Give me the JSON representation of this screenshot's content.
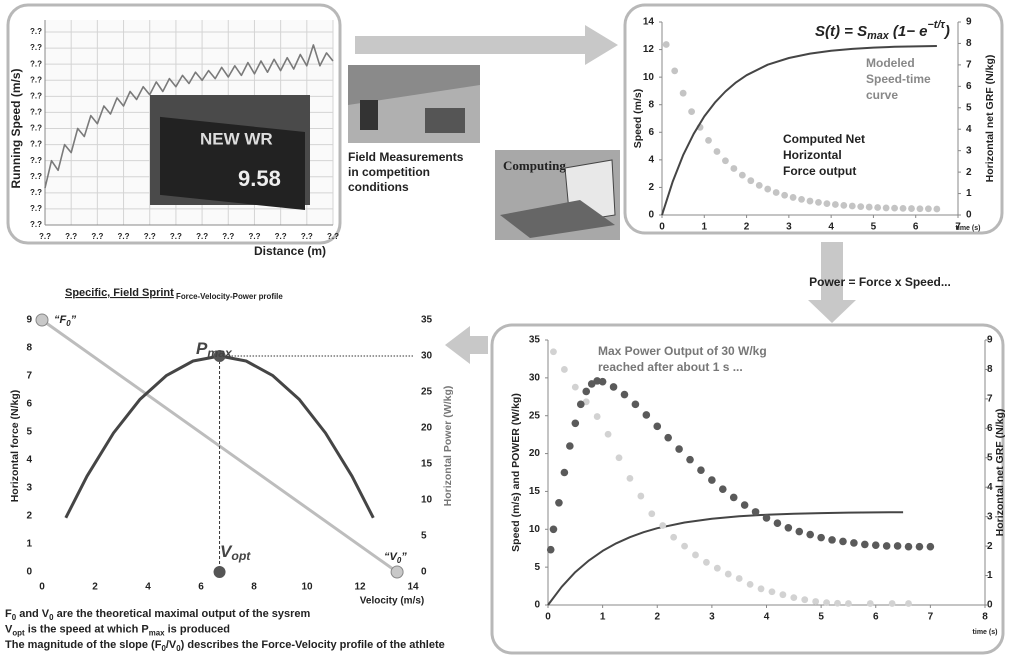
{
  "chart_data": [
    {
      "type": "line",
      "ylabel": "Running Speed (m/s)",
      "xlabel": "Distance (m)",
      "xlim": [
        0,
        11
      ],
      "ylim": [
        0,
        12
      ],
      "grid": true,
      "xticks": [
        {
          "value": 0,
          "label": "?.?"
        },
        {
          "value": 1,
          "label": "?.?"
        },
        {
          "value": 2,
          "label": "?.?"
        },
        {
          "value": 3,
          "label": "?.?"
        },
        {
          "value": 4,
          "label": "?.?"
        },
        {
          "value": 5,
          "label": "?.?"
        },
        {
          "value": 6,
          "label": "?.?"
        },
        {
          "value": 7,
          "label": "?.?"
        },
        {
          "value": 8,
          "label": "?.?"
        },
        {
          "value": 9,
          "label": "?.?"
        },
        {
          "value": 10,
          "label": "?.?"
        },
        {
          "value": 11,
          "label": "?.?"
        }
      ],
      "yticks": [
        {
          "value": 0,
          "label": "?.?"
        },
        {
          "value": 1,
          "label": "?.?"
        },
        {
          "value": 2,
          "label": "?.?"
        },
        {
          "value": 3,
          "label": "?.?"
        },
        {
          "value": 4,
          "label": "?.?"
        },
        {
          "value": 5,
          "label": "?.?"
        },
        {
          "value": 6,
          "label": "?.?"
        },
        {
          "value": 7,
          "label": "?.?"
        },
        {
          "value": 8,
          "label": "?.?"
        },
        {
          "value": 9,
          "label": "?.?"
        },
        {
          "value": 10,
          "label": "?.?"
        },
        {
          "value": 11,
          "label": "?.?"
        },
        {
          "value": 12,
          "label": "?.?"
        }
      ],
      "series": [
        {
          "color": "#7a7a7a",
          "style": "line",
          "x": [
            0,
            0.25,
            0.5,
            0.75,
            1,
            1.25,
            1.5,
            1.75,
            2,
            2.25,
            2.5,
            2.75,
            3,
            3.25,
            3.5,
            3.75,
            4,
            4.25,
            4.5,
            4.75,
            5,
            5.25,
            5.5,
            5.75,
            6,
            6.25,
            6.5,
            6.75,
            7,
            7.25,
            7.5,
            7.75,
            8,
            8.25,
            8.5,
            8.75,
            9,
            9.25,
            9.5,
            9.75,
            10,
            10.25,
            10.5,
            10.75,
            11
          ],
          "values": [
            2.3,
            4,
            3.4,
            5,
            4.5,
            6,
            5.5,
            6.8,
            6.3,
            7.4,
            6.9,
            7.9,
            7.4,
            8.3,
            7.8,
            8.6,
            8.1,
            8.9,
            8.3,
            9.1,
            8.6,
            9.3,
            8.8,
            9.5,
            9,
            9.6,
            9.1,
            9.8,
            9.2,
            9.9,
            9.3,
            10.1,
            9.4,
            10.2,
            9.5,
            10.3,
            9.6,
            10.4,
            9.7,
            10.6,
            9.9,
            11.2,
            9.9,
            10.7,
            10.2
          ]
        }
      ]
    },
    {
      "type": "line",
      "ylabel": "Speed (m/s)",
      "y2label": "Horizontal net GRF (N/kg)",
      "xlabel": "time (s)",
      "xlim": [
        0,
        7
      ],
      "xticks": [
        0,
        1,
        2,
        3,
        4,
        5,
        6,
        7
      ],
      "ylim": [
        0,
        14
      ],
      "yticks": [
        0,
        2,
        4,
        6,
        8,
        10,
        12,
        14
      ],
      "y2lim": [
        0,
        9
      ],
      "y2ticks": [
        0,
        1,
        2,
        3,
        4,
        5,
        6,
        7,
        8,
        9
      ],
      "formula": [
        "S(t) = S",
        "max",
        " (1− e",
        "−t/τ",
        ")"
      ],
      "annotations": [
        [
          "Modeled",
          "Speed-time",
          "curve"
        ],
        [
          "Computed Net",
          "Horizontal",
          "Force output"
        ]
      ],
      "series": [
        {
          "color": "#c4c4c4",
          "style": "dots",
          "axis": "y2",
          "x": [
            0.1,
            0.3,
            0.5,
            0.7,
            0.9,
            1.1,
            1.3,
            1.5,
            1.7,
            1.9,
            2.1,
            2.3,
            2.5,
            2.7,
            2.9,
            3.1,
            3.3,
            3.5,
            3.7,
            3.9,
            4.1,
            4.3,
            4.5,
            4.7,
            4.9,
            5.1,
            5.3,
            5.5,
            5.7,
            5.9,
            6.1,
            6.3,
            6.5
          ],
          "values": [
            7.95,
            6.72,
            5.68,
            4.82,
            4.09,
            3.48,
            2.96,
            2.53,
            2.17,
            1.86,
            1.6,
            1.38,
            1.21,
            1.05,
            0.92,
            0.82,
            0.73,
            0.65,
            0.59,
            0.53,
            0.49,
            0.45,
            0.42,
            0.39,
            0.37,
            0.35,
            0.33,
            0.32,
            0.31,
            0.3,
            0.29,
            0.29,
            0.28
          ]
        },
        {
          "color": "#454545",
          "style": "line",
          "x": [
            0,
            0.25,
            0.5,
            0.75,
            1,
            1.25,
            1.5,
            1.75,
            2,
            2.5,
            3,
            3.5,
            4,
            4.5,
            5,
            5.5,
            6,
            6.5
          ],
          "values": [
            0,
            2.4,
            4.34,
            5.89,
            7.15,
            8.15,
            8.96,
            9.62,
            10.14,
            10.9,
            11.39,
            11.71,
            11.92,
            12.05,
            12.14,
            12.2,
            12.23,
            12.26
          ]
        }
      ]
    },
    {
      "type": "line",
      "ylabel": "Speed (m/s) and POWER (W/kg)",
      "y2label": "Horizontal net GRF (N/kg)",
      "xlabel": "time (s)",
      "xlim": [
        0,
        8
      ],
      "xticks": [
        0,
        1,
        2,
        3,
        4,
        5,
        6,
        7,
        8
      ],
      "ylim": [
        0,
        35
      ],
      "yticks": [
        0,
        5,
        10,
        15,
        20,
        25,
        30,
        35
      ],
      "y2lim": [
        0,
        9
      ],
      "y2ticks": [
        0,
        1,
        2,
        3,
        4,
        5,
        6,
        7,
        8,
        9
      ],
      "annotations": [
        [
          "Max Power Output of 30 W/kg",
          "reached after about 1 s ..."
        ]
      ],
      "series": [
        {
          "color": "#454545",
          "style": "line",
          "x": [
            0,
            0.25,
            0.5,
            0.75,
            1,
            1.25,
            1.5,
            1.75,
            2,
            2.5,
            3,
            3.5,
            4,
            4.5,
            5,
            5.5,
            6,
            6.5
          ],
          "values": [
            0,
            2.4,
            4.34,
            5.89,
            7.15,
            8.15,
            8.96,
            9.62,
            10.14,
            10.9,
            11.39,
            11.71,
            11.92,
            12.05,
            12.14,
            12.2,
            12.23,
            12.26
          ]
        },
        {
          "color": "#d2d2d2",
          "style": "dots",
          "axis": "y2",
          "x": [
            0.1,
            0.3,
            0.5,
            0.7,
            0.9,
            1.1,
            1.3,
            1.5,
            1.7,
            1.9,
            2.1,
            2.3,
            2.5,
            2.7,
            2.9,
            3.1,
            3.3,
            3.5,
            3.7,
            3.9,
            4.1,
            4.3,
            4.5,
            4.7,
            4.9,
            5.1,
            5.3,
            5.5,
            5.9,
            6.3,
            6.6
          ],
          "values": [
            8.6,
            8,
            7.4,
            6.9,
            6.4,
            5.8,
            5,
            4.3,
            3.7,
            3.1,
            2.7,
            2.3,
            2,
            1.7,
            1.45,
            1.25,
            1.05,
            0.9,
            0.7,
            0.55,
            0.45,
            0.35,
            0.25,
            0.18,
            0.12,
            0.08,
            0.06,
            0.05,
            0.05,
            0.05,
            0.05
          ]
        },
        {
          "color": "#5a5a5a",
          "style": "dots",
          "x": [
            0.05,
            0.1,
            0.2,
            0.3,
            0.4,
            0.5,
            0.6,
            0.7,
            0.8,
            0.9,
            1,
            1.2,
            1.4,
            1.6,
            1.8,
            2,
            2.2,
            2.4,
            2.6,
            2.8,
            3,
            3.2,
            3.4,
            3.6,
            3.8,
            4,
            4.2,
            4.4,
            4.6,
            4.8,
            5,
            5.2,
            5.4,
            5.6,
            5.8,
            6,
            6.2,
            6.4,
            6.6,
            6.8,
            7
          ],
          "values": [
            7.3,
            10,
            13.5,
            17.5,
            21,
            24,
            26.5,
            28.2,
            29.2,
            29.6,
            29.5,
            28.8,
            27.8,
            26.5,
            25.1,
            23.6,
            22.1,
            20.6,
            19.2,
            17.8,
            16.5,
            15.3,
            14.2,
            13.2,
            12.3,
            11.5,
            10.8,
            10.2,
            9.7,
            9.3,
            8.9,
            8.6,
            8.4,
            8.2,
            8,
            7.9,
            7.8,
            7.8,
            7.7,
            7.7,
            7.7
          ]
        }
      ]
    },
    {
      "type": "line",
      "title": [
        "Specific, Field Sprint",
        " Force-Velocity-Power profile"
      ],
      "ylabel": "Horizontal force (N/kg)",
      "y2label": "Horizontal Power (W/kg)",
      "xlabel": "Velocity (m/s)",
      "xlim": [
        0,
        14
      ],
      "xticks": [
        0,
        2,
        4,
        6,
        8,
        10,
        12,
        14
      ],
      "ylim": [
        0,
        9
      ],
      "yticks": [
        0,
        1,
        2,
        3,
        4,
        5,
        6,
        7,
        8,
        9
      ],
      "y2lim": [
        0,
        35
      ],
      "y2ticks": [
        0,
        5,
        10,
        15,
        20,
        25,
        30,
        35
      ],
      "point_labels": [
        [
          "“F",
          "0",
          "”"
        ],
        [
          "“V",
          "0",
          "”"
        ],
        [
          "P",
          "max"
        ],
        [
          "V",
          "opt"
        ]
      ],
      "series": [
        {
          "color": "#bdbdbd",
          "style": "line",
          "x": [
            0,
            13.4
          ],
          "values": [
            9,
            0
          ]
        },
        {
          "color": "#454545",
          "style": "line",
          "axis": "y2",
          "x": [
            0.9,
            1.7,
            2.7,
            3.7,
            4.7,
            5.7,
            6.7,
            7.7,
            8.7,
            9.7,
            10.7,
            11.7,
            12.5
          ],
          "values": [
            7.53,
            13.3,
            19.3,
            24,
            27.3,
            29.3,
            30,
            29.3,
            27.3,
            24,
            19.3,
            13.3,
            7.53
          ]
        }
      ]
    }
  ],
  "scoreboard": [
    "NEW WR",
    "9.58"
  ],
  "field_caption": [
    "Field Measurements",
    "in competition",
    "conditions"
  ],
  "computing_label": "Computing",
  "power_equation": "Power = Force x Speed...",
  "footnotes": [
    [
      "F",
      "0",
      " and V",
      "0",
      " are the theoretical maximal output of the sysrem"
    ],
    [
      "V",
      "opt",
      " is the speed at which P",
      "max",
      " is produced"
    ],
    [
      "The magnitude of the slope (F",
      "0",
      "/V",
      "0",
      ") describes the Force-Velocity profile of the athlete"
    ]
  ]
}
